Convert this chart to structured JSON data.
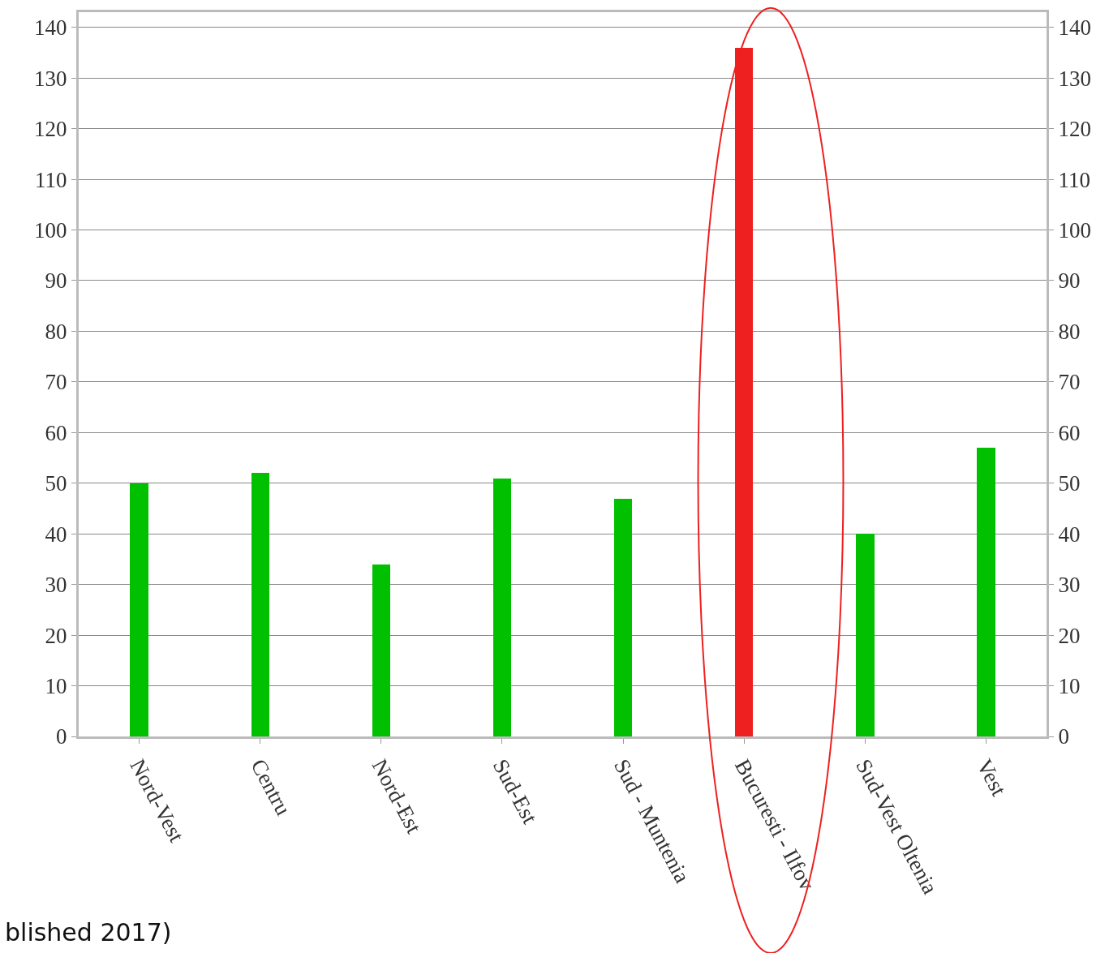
{
  "chart_data": {
    "type": "bar",
    "categories": [
      "Nord-Vest",
      "Centru",
      "Nord-Est",
      "Sud-Est",
      "Sud - Muntenia",
      "Bucuresti - Ilfov",
      "Sud-Vest Oltenia",
      "Vest"
    ],
    "values": [
      50,
      52,
      34,
      51,
      47,
      136,
      40,
      57
    ],
    "colors": [
      "#00c000",
      "#00c000",
      "#00c000",
      "#00c000",
      "#00c000",
      "#ee2020",
      "#00c000",
      "#00c000"
    ],
    "ylim": [
      0,
      143
    ],
    "yticks": [
      0,
      10,
      20,
      30,
      40,
      50,
      60,
      70,
      80,
      90,
      100,
      110,
      120,
      130,
      140
    ],
    "y2lim": [
      0,
      143
    ],
    "y2ticks": [
      0,
      10,
      20,
      30,
      40,
      50,
      60,
      70,
      80,
      90,
      100,
      110,
      120,
      130,
      140
    ],
    "grid": "y",
    "annotations": [
      "blished 2017)"
    ]
  }
}
